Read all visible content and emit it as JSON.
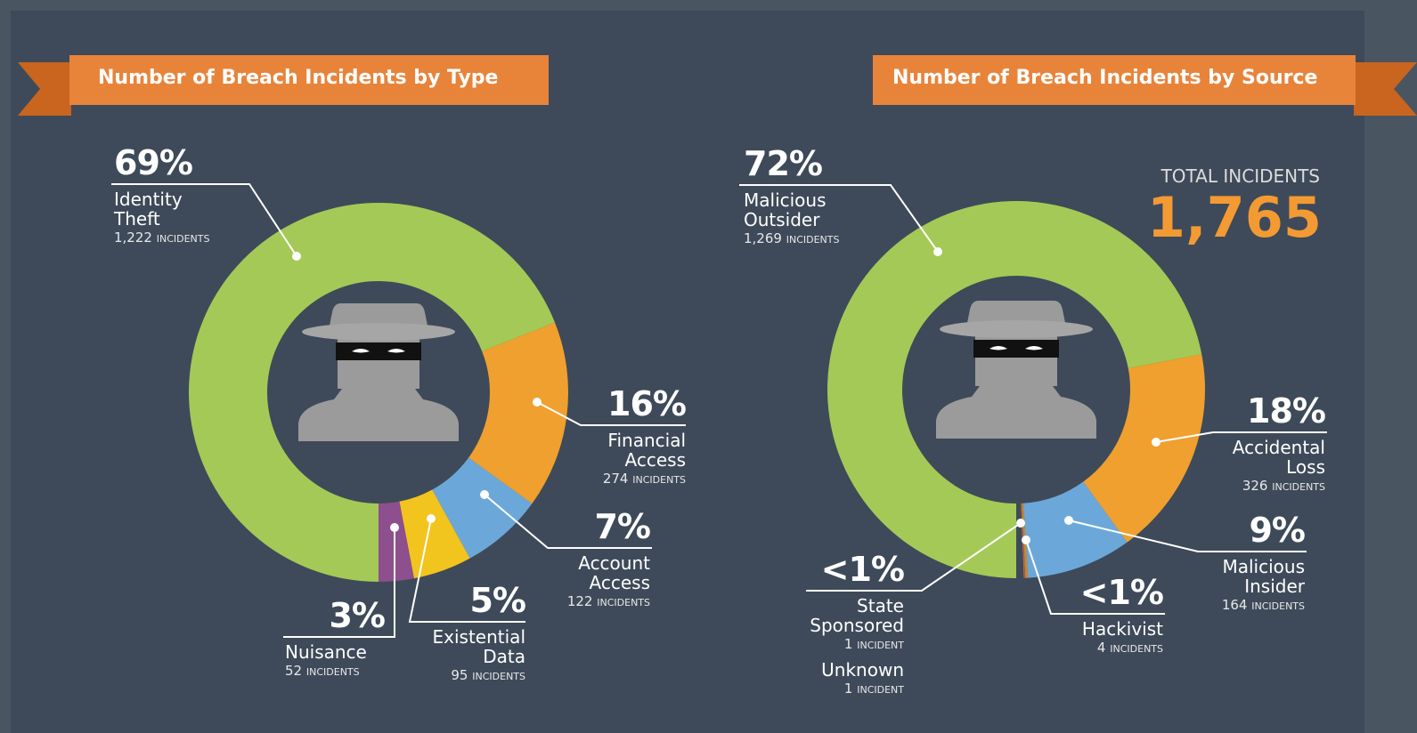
{
  "chart_data": [
    {
      "type": "donut",
      "title": "Number of Breach Incidents by Type",
      "categories": [
        "Identity Theft",
        "Financial Access",
        "Account Access",
        "Existential Data",
        "Nuisance"
      ],
      "values": [
        69,
        16,
        7,
        5,
        3
      ],
      "value_labels": [
        "69%",
        "16%",
        "7%",
        "5%",
        "3%"
      ],
      "counts": [
        {
          "value": 1222,
          "label": "1,222"
        },
        274,
        122,
        95,
        52
      ],
      "count_units": [
        "INCIDENTS",
        "INCIDENTS",
        "INCIDENTS",
        "INCIDENTS",
        "INCIDENTS"
      ],
      "colors": [
        "#a4c957",
        "#f0a02e",
        "#6ba8d9",
        "#f2c41e",
        "#8e4f8e"
      ]
    },
    {
      "type": "donut",
      "title": "Number of Breach Incidents by Source",
      "categories": [
        "Malicious Outsider",
        "Accidental Loss",
        "Malicious Insider",
        "Hackivist",
        "State Sponsored",
        "Unknown"
      ],
      "values": [
        72,
        18,
        9,
        0.23,
        0.06,
        0.06
      ],
      "value_labels": [
        "72%",
        "18%",
        "9%",
        "<1%",
        "<1%",
        null
      ],
      "counts": [
        {
          "value": 1269,
          "label": "1,269"
        },
        326,
        164,
        4,
        1,
        1
      ],
      "count_units": [
        "INCIDENTS",
        "INCIDENTS",
        "INCIDENTS",
        "INCIDENTS",
        "INCIDENT",
        "INCIDENT"
      ],
      "colors": [
        "#a4c957",
        "#f0a02e",
        "#6ba8d9",
        "#c98a2a",
        "#8e4f8e",
        "#e07b2a"
      ],
      "total_label": "TOTAL INCIDENTS",
      "total": {
        "value": 1765,
        "label": "1,765"
      }
    }
  ]
}
